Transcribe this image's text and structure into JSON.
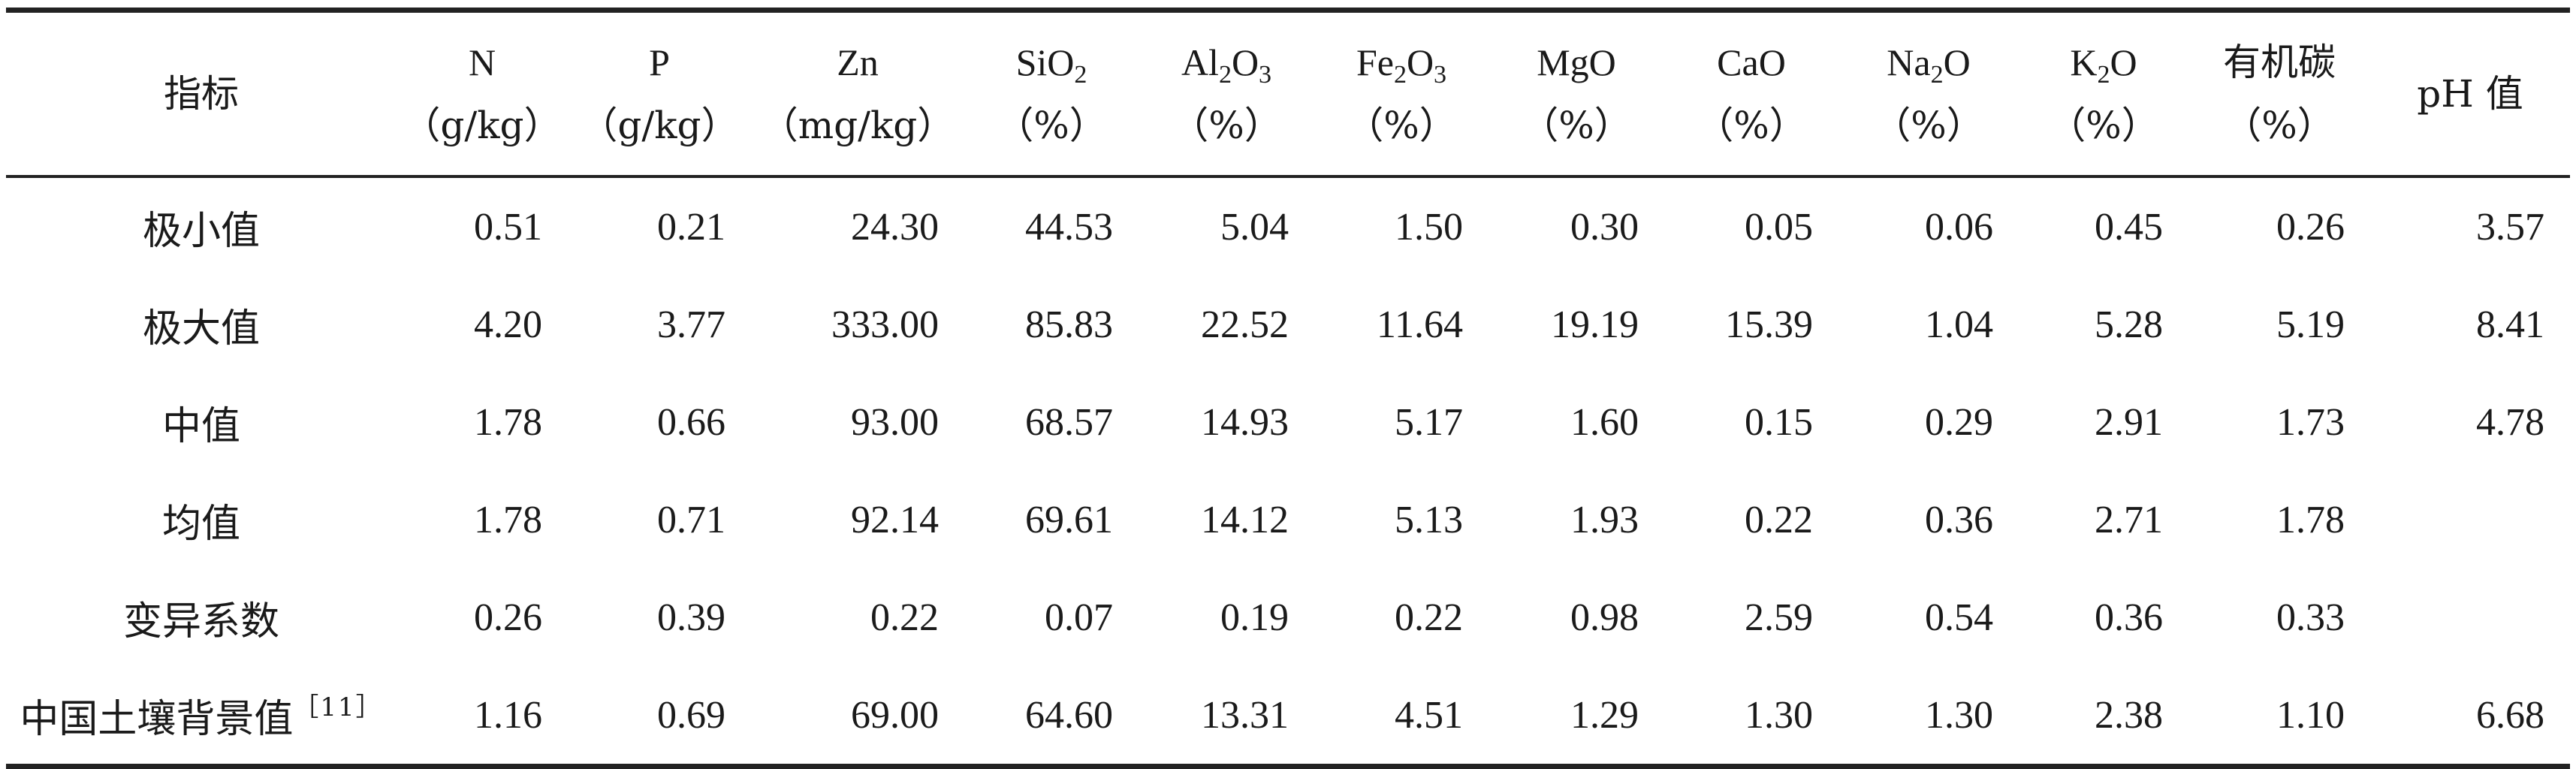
{
  "table": {
    "corner_header": "指标",
    "columns": [
      {
        "name_parts": [
          "N"
        ],
        "unit": "（g/kg）"
      },
      {
        "name_parts": [
          "P"
        ],
        "unit": "（g/kg）"
      },
      {
        "name_parts": [
          "Zn"
        ],
        "unit": "（mg/kg）"
      },
      {
        "name_parts": [
          "SiO",
          "2",
          ""
        ],
        "unit": "（%）"
      },
      {
        "name_parts": [
          "Al",
          "2",
          "O",
          "3",
          ""
        ],
        "unit": "（%）"
      },
      {
        "name_parts": [
          "Fe",
          "2",
          "O",
          "3",
          ""
        ],
        "unit": "（%）"
      },
      {
        "name_parts": [
          "MgO"
        ],
        "unit": "（%）"
      },
      {
        "name_parts": [
          "CaO"
        ],
        "unit": "（%）"
      },
      {
        "name_parts": [
          "Na",
          "2",
          "O"
        ],
        "unit": "（%）"
      },
      {
        "name_parts": [
          "K",
          "2",
          "O"
        ],
        "unit": "（%）"
      },
      {
        "name_parts": [
          "有机碳"
        ],
        "unit": "（%）"
      },
      {
        "name_parts": [
          "pH 值"
        ],
        "unit": ""
      }
    ],
    "rows": [
      {
        "label": "极小值",
        "ref": "",
        "values": [
          "0.51",
          "0.21",
          "24.30",
          "44.53",
          "5.04",
          "1.50",
          "0.30",
          "0.05",
          "0.06",
          "0.45",
          "0.26",
          "3.57"
        ]
      },
      {
        "label": "极大值",
        "ref": "",
        "values": [
          "4.20",
          "3.77",
          "333.00",
          "85.83",
          "22.52",
          "11.64",
          "19.19",
          "15.39",
          "1.04",
          "5.28",
          "5.19",
          "8.41"
        ]
      },
      {
        "label": "中值",
        "ref": "",
        "values": [
          "1.78",
          "0.66",
          "93.00",
          "68.57",
          "14.93",
          "5.17",
          "1.60",
          "0.15",
          "0.29",
          "2.91",
          "1.73",
          "4.78"
        ]
      },
      {
        "label": "均值",
        "ref": "",
        "values": [
          "1.78",
          "0.71",
          "92.14",
          "69.61",
          "14.12",
          "5.13",
          "1.93",
          "0.22",
          "0.36",
          "2.71",
          "1.78",
          ""
        ]
      },
      {
        "label": "变异系数",
        "ref": "",
        "values": [
          "0.26",
          "0.39",
          "0.22",
          "0.07",
          "0.19",
          "0.22",
          "0.98",
          "2.59",
          "0.54",
          "0.36",
          "0.33",
          ""
        ]
      },
      {
        "label": "中国土壤背景值",
        "ref": "［11］",
        "values": [
          "1.16",
          "0.69",
          "69.00",
          "64.60",
          "13.31",
          "4.51",
          "1.29",
          "1.30",
          "1.30",
          "2.38",
          "1.10",
          "6.68"
        ]
      }
    ]
  }
}
